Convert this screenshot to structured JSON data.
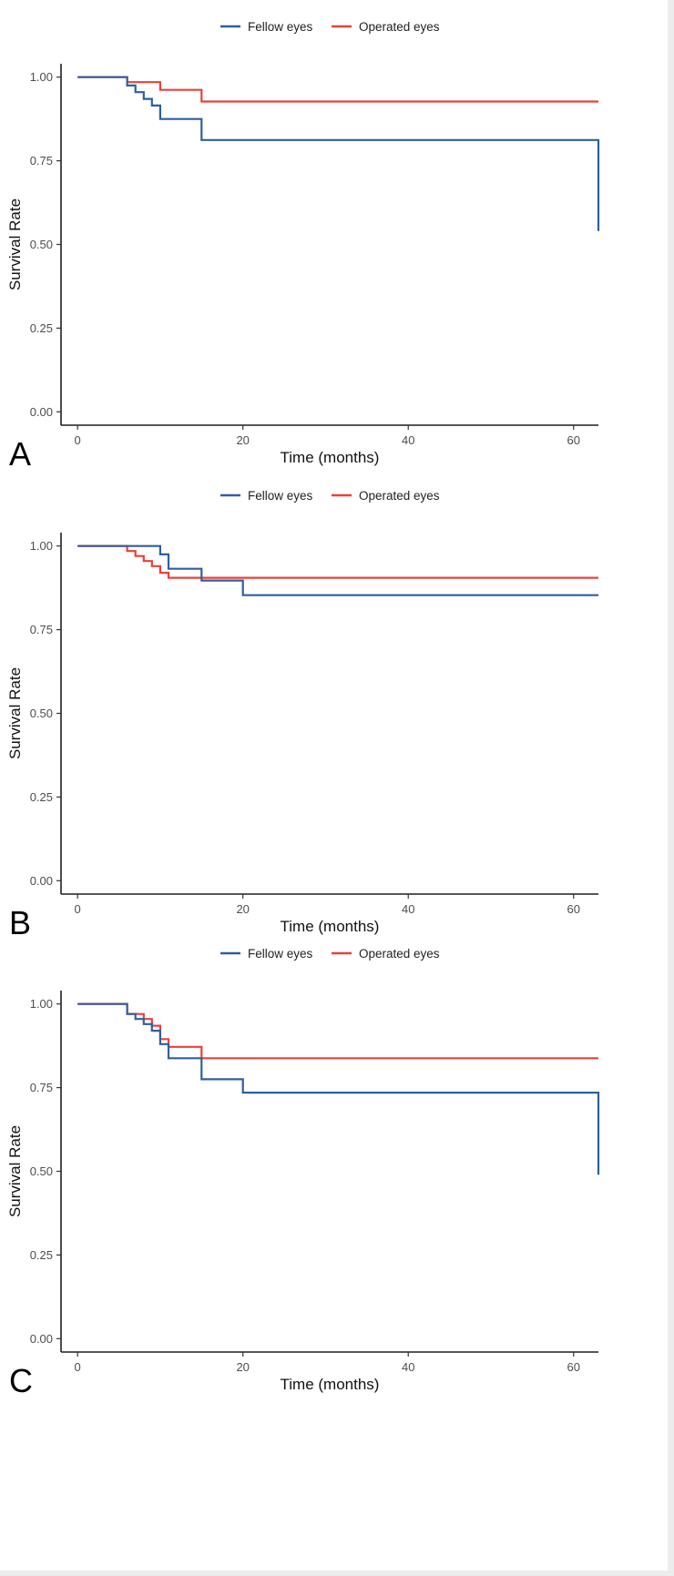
{
  "figure": {
    "colors": {
      "fellow": "#2f5f9e",
      "operated": "#e8423b"
    }
  },
  "chart_data": [
    {
      "type": "line",
      "panel_label": "A",
      "title": "",
      "xlabel": "Time (months)",
      "ylabel": "Survival Rate",
      "xlim": [
        -2,
        63
      ],
      "ylim": [
        -0.04,
        1.04
      ],
      "x_ticks": [
        0,
        20,
        40,
        60
      ],
      "y_ticks": [
        0.0,
        0.25,
        0.5,
        0.75,
        1.0
      ],
      "x_tick_labels": [
        "0",
        "20",
        "40",
        "60"
      ],
      "y_tick_labels": [
        "0.00",
        "0.25",
        "0.50",
        "0.75",
        "1.00"
      ],
      "legend": {
        "position": "top-center",
        "entries": [
          "Fellow eyes",
          "Operated eyes"
        ]
      },
      "series": [
        {
          "name": "Fellow eyes",
          "color": "#2f5f9e",
          "step": true,
          "x": [
            0,
            6,
            7,
            8,
            9,
            10,
            15,
            63,
            63
          ],
          "y": [
            1.0,
            0.975,
            0.955,
            0.935,
            0.915,
            0.875,
            0.812,
            0.812,
            0.54
          ]
        },
        {
          "name": "Operated eyes",
          "color": "#e8423b",
          "step": true,
          "x": [
            0,
            6,
            10,
            15,
            63
          ],
          "y": [
            1.0,
            0.985,
            0.962,
            0.927,
            0.927
          ]
        }
      ]
    },
    {
      "type": "line",
      "panel_label": "B",
      "title": "",
      "xlabel": "Time (months)",
      "ylabel": "Survival Rate",
      "xlim": [
        -2,
        63
      ],
      "ylim": [
        -0.04,
        1.04
      ],
      "x_ticks": [
        0,
        20,
        40,
        60
      ],
      "y_ticks": [
        0.0,
        0.25,
        0.5,
        0.75,
        1.0
      ],
      "x_tick_labels": [
        "0",
        "20",
        "40",
        "60"
      ],
      "y_tick_labels": [
        "0.00",
        "0.25",
        "0.50",
        "0.75",
        "1.00"
      ],
      "legend": {
        "position": "top-center",
        "entries": [
          "Fellow eyes",
          "Operated eyes"
        ]
      },
      "series": [
        {
          "name": "Fellow eyes",
          "color": "#2f5f9e",
          "step": true,
          "x": [
            0,
            10,
            11,
            15,
            20,
            63
          ],
          "y": [
            1.0,
            0.975,
            0.932,
            0.897,
            0.853,
            0.853
          ]
        },
        {
          "name": "Operated eyes",
          "color": "#e8423b",
          "step": true,
          "x": [
            0,
            6,
            7,
            8,
            9,
            10,
            11,
            63
          ],
          "y": [
            1.0,
            0.985,
            0.97,
            0.955,
            0.94,
            0.92,
            0.905,
            0.905
          ]
        }
      ]
    },
    {
      "type": "line",
      "panel_label": "C",
      "title": "",
      "xlabel": "Time (months)",
      "ylabel": "Survival Rate",
      "xlim": [
        -2,
        63
      ],
      "ylim": [
        -0.04,
        1.04
      ],
      "x_ticks": [
        0,
        20,
        40,
        60
      ],
      "y_ticks": [
        0.0,
        0.25,
        0.5,
        0.75,
        1.0
      ],
      "x_tick_labels": [
        "0",
        "20",
        "40",
        "60"
      ],
      "y_tick_labels": [
        "0.00",
        "0.25",
        "0.50",
        "0.75",
        "1.00"
      ],
      "legend": {
        "position": "top-center",
        "entries": [
          "Fellow eyes",
          "Operated eyes"
        ]
      },
      "series": [
        {
          "name": "Fellow eyes",
          "color": "#2f5f9e",
          "step": true,
          "x": [
            0,
            6,
            7,
            8,
            9,
            10,
            11,
            15,
            20,
            63,
            63
          ],
          "y": [
            1.0,
            0.97,
            0.955,
            0.94,
            0.92,
            0.88,
            0.838,
            0.775,
            0.735,
            0.735,
            0.49
          ]
        },
        {
          "name": "Operated eyes",
          "color": "#e8423b",
          "step": true,
          "x": [
            0,
            6,
            8,
            9,
            10,
            11,
            15,
            63
          ],
          "y": [
            1.0,
            0.97,
            0.955,
            0.935,
            0.895,
            0.872,
            0.838,
            0.838
          ]
        }
      ]
    }
  ]
}
